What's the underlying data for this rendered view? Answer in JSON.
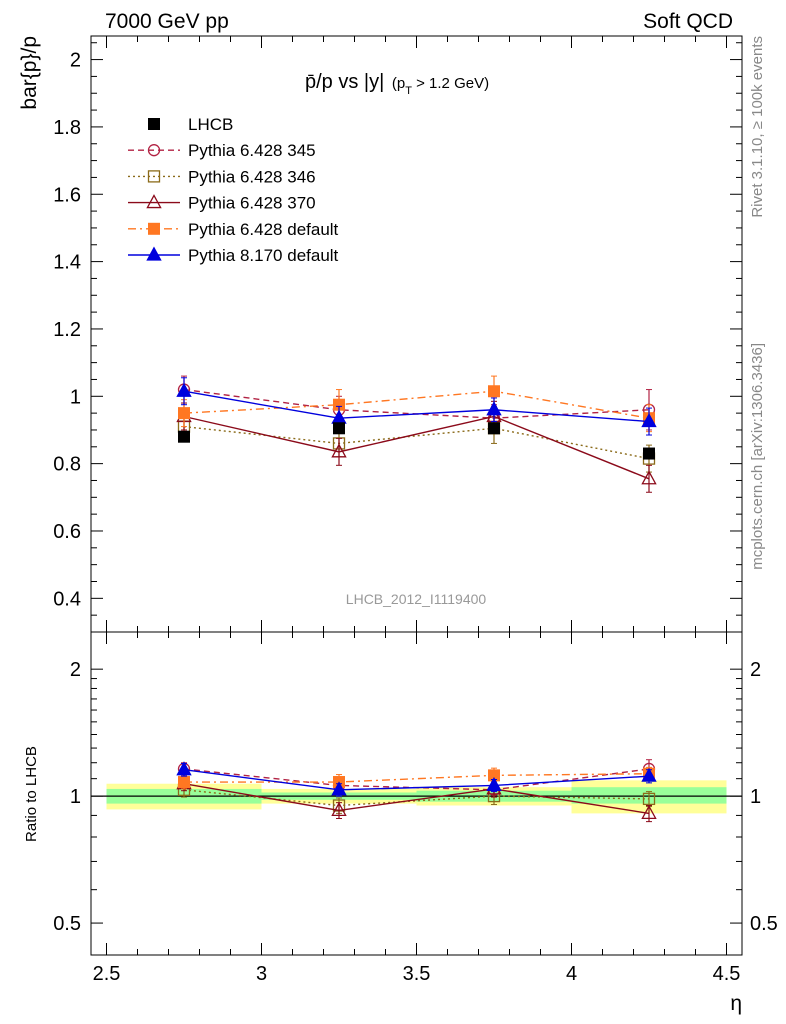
{
  "header": {
    "left": "7000 GeV pp",
    "right": "Soft QCD"
  },
  "side_labels": {
    "rivet": "Rivet 3.1.10, ≥ 100k events",
    "source": "mcplots.cern.ch [arXiv:1306.3436]"
  },
  "chart_data": [
    {
      "type": "scatter",
      "panel": "main",
      "title": "p̄/p vs |y|",
      "title_parts": {
        "main": "p̄/p vs |y|",
        "cut_open": "(p",
        "cut_sub": "T",
        "cut_rest": " > 1.2 GeV)"
      },
      "ylabel": "bar{p}/p",
      "xlim": [
        2.45,
        4.55
      ],
      "ylim": [
        0.3,
        2.07
      ],
      "yticks": [
        0.4,
        0.6,
        0.8,
        1.0,
        1.2,
        1.4,
        1.6,
        1.8,
        2.0
      ],
      "ytick_labels": [
        "0.4",
        "0.6",
        "0.8",
        "1",
        "1.2",
        "1.4",
        "1.6",
        "1.8",
        "2"
      ],
      "analysis_label": "LHCB_2012_I1119400",
      "legend_position": "top-left",
      "x": [
        2.75,
        3.25,
        3.75,
        4.25
      ],
      "series": [
        {
          "name": "LHCB",
          "color": "#000000",
          "marker": "square-filled",
          "line": "none",
          "values": [
            0.88,
            0.905,
            0.905,
            0.83
          ],
          "errors": [
            0.01,
            0.01,
            0.015,
            0.015
          ]
        },
        {
          "name": "Pythia 6.428 345",
          "color": "#b22243",
          "marker": "circle-open",
          "line": "dashed",
          "values": [
            1.02,
            0.96,
            0.935,
            0.96
          ],
          "errors": [
            0.04,
            0.04,
            0.04,
            0.06
          ]
        },
        {
          "name": "Pythia 6.428 346",
          "color": "#8b6b1a",
          "marker": "square-open",
          "line": "dotted",
          "values": [
            0.91,
            0.86,
            0.905,
            0.815
          ],
          "errors": [
            0.04,
            0.04,
            0.045,
            0.04
          ]
        },
        {
          "name": "Pythia 6.428 370",
          "color": "#8b0a1a",
          "marker": "triangle-open",
          "line": "solid",
          "values": [
            0.94,
            0.835,
            0.94,
            0.755
          ],
          "errors": [
            0.04,
            0.04,
            0.045,
            0.04
          ]
        },
        {
          "name": "Pythia 6.428 default",
          "color": "#ff7722",
          "marker": "square-filled",
          "line": "dashdot",
          "values": [
            0.95,
            0.975,
            1.015,
            0.935
          ],
          "errors": [
            0.04,
            0.045,
            0.045,
            0.04
          ]
        },
        {
          "name": "Pythia 8.170 default",
          "color": "#0000dd",
          "marker": "triangle-filled",
          "line": "solid",
          "values": [
            1.015,
            0.935,
            0.96,
            0.925
          ],
          "errors": [
            0.04,
            0.035,
            0.035,
            0.04
          ]
        }
      ]
    },
    {
      "type": "scatter",
      "panel": "ratio",
      "ylabel": "Ratio to LHCB",
      "xlabel": "η",
      "xlim": [
        2.45,
        4.55
      ],
      "xticks": [
        2.5,
        3.0,
        3.5,
        4.0,
        4.5
      ],
      "xtick_labels": [
        "2.5",
        "3",
        "3.5",
        "4",
        "4.5"
      ],
      "ylim": [
        0.42,
        2.45
      ],
      "ylog": true,
      "yticks": [
        0.5,
        1.0,
        2.0
      ],
      "ytick_labels": [
        "0.5",
        "1",
        "2"
      ],
      "x": [
        2.75,
        3.25,
        3.75,
        4.25
      ],
      "bands": [
        {
          "xlo": 2.5,
          "xhi": 3.0,
          "green": [
            0.96,
            1.04
          ],
          "yellow": [
            0.93,
            1.07
          ]
        },
        {
          "xlo": 3.0,
          "xhi": 3.5,
          "green": [
            0.98,
            1.02
          ],
          "yellow": [
            0.96,
            1.04
          ]
        },
        {
          "xlo": 3.5,
          "xhi": 4.0,
          "green": [
            0.97,
            1.03
          ],
          "yellow": [
            0.95,
            1.05
          ]
        },
        {
          "xlo": 4.0,
          "xhi": 4.5,
          "green": [
            0.96,
            1.05
          ],
          "yellow": [
            0.91,
            1.09
          ]
        }
      ],
      "series": [
        {
          "name": "Pythia 6.428 345",
          "values": [
            1.16,
            1.06,
            1.035,
            1.16
          ],
          "errors": [
            0.04,
            0.04,
            0.04,
            0.06
          ]
        },
        {
          "name": "Pythia 6.428 346",
          "values": [
            1.035,
            0.95,
            1.0,
            0.985
          ],
          "errors": [
            0.04,
            0.04,
            0.045,
            0.04
          ]
        },
        {
          "name": "Pythia 6.428 370",
          "values": [
            1.07,
            0.925,
            1.04,
            0.91
          ],
          "errors": [
            0.04,
            0.04,
            0.045,
            0.04
          ]
        },
        {
          "name": "Pythia 6.428 default",
          "values": [
            1.08,
            1.08,
            1.12,
            1.13
          ],
          "errors": [
            0.04,
            0.045,
            0.045,
            0.04
          ]
        },
        {
          "name": "Pythia 8.170 default",
          "values": [
            1.155,
            1.035,
            1.06,
            1.115
          ],
          "errors": [
            0.04,
            0.035,
            0.035,
            0.04
          ]
        }
      ]
    }
  ]
}
